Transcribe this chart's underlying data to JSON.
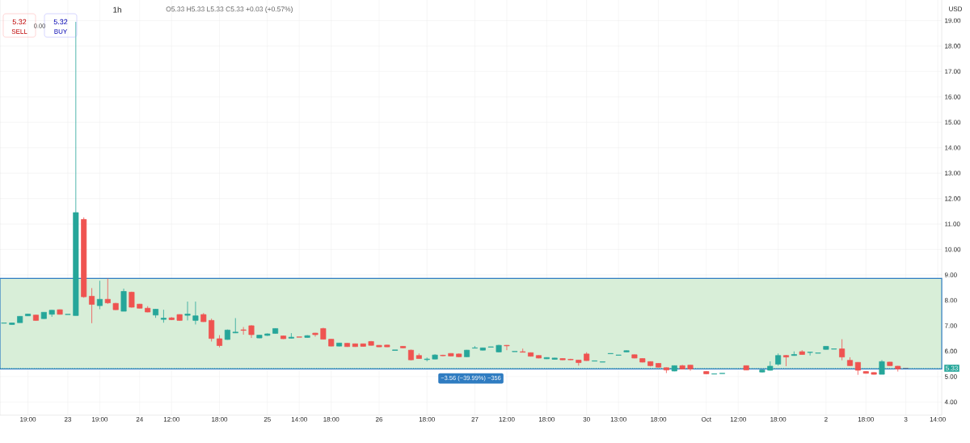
{
  "chart_data": {
    "type": "candlestick",
    "title": "1h",
    "ylabel": "USD",
    "categories": [
      null,
      null,
      null,
      "19:00",
      null,
      null,
      null,
      null,
      "23",
      null,
      null,
      null,
      "19:00",
      null,
      null,
      null,
      null,
      "24",
      null,
      null,
      null,
      "12:00",
      null,
      null,
      null,
      null,
      null,
      "18:00",
      null,
      null,
      null,
      null,
      null,
      "25",
      null,
      null,
      null,
      "14:00",
      null,
      null,
      null,
      "18:00",
      null,
      null,
      null,
      null,
      null,
      "26",
      null,
      null,
      null,
      null,
      null,
      "18:00",
      null,
      null,
      null,
      null,
      null,
      "27",
      null,
      null,
      null,
      "12:00",
      null,
      null,
      null,
      null,
      "18:00",
      null,
      null,
      null,
      null,
      "30",
      null,
      null,
      null,
      "13:00",
      null,
      null,
      null,
      null,
      "18:00",
      null,
      null,
      null,
      null,
      null,
      "Oct",
      null,
      null,
      null,
      "12:00",
      null,
      null,
      null,
      null,
      "18:00",
      null,
      null,
      null,
      null,
      null,
      "2",
      null,
      null,
      null,
      null,
      "18:00",
      null,
      null,
      null,
      null,
      "3",
      null,
      null,
      null,
      "14:00"
    ],
    "ohlc": [
      [
        7.1,
        7.11,
        7.1,
        7.11
      ],
      [
        7.05,
        7.12,
        7.04,
        7.11
      ],
      [
        7.12,
        7.38,
        7.12,
        7.37
      ],
      [
        7.39,
        7.47,
        7.38,
        7.46
      ],
      [
        7.42,
        7.43,
        7.2,
        7.21
      ],
      [
        7.28,
        7.53,
        7.27,
        7.53
      ],
      [
        7.45,
        7.62,
        7.35,
        7.61
      ],
      [
        7.63,
        7.64,
        7.44,
        7.45
      ],
      [
        7.44,
        7.45,
        7.44,
        7.45
      ],
      [
        7.4,
        18.95,
        7.4,
        11.45
      ],
      [
        11.18,
        11.26,
        8.1,
        8.14
      ],
      [
        8.16,
        8.48,
        7.1,
        7.84
      ],
      [
        7.79,
        8.77,
        7.65,
        8.04
      ],
      [
        8.04,
        8.86,
        7.86,
        7.9
      ],
      [
        7.88,
        7.9,
        7.62,
        7.63
      ],
      [
        7.57,
        8.46,
        7.57,
        8.35
      ],
      [
        8.32,
        8.34,
        7.71,
        7.73
      ],
      [
        7.85,
        7.86,
        7.68,
        7.69
      ],
      [
        7.69,
        7.77,
        7.53,
        7.54
      ],
      [
        7.42,
        7.66,
        7.31,
        7.65
      ],
      [
        7.25,
        7.63,
        7.12,
        7.3
      ],
      [
        7.31,
        7.34,
        7.22,
        7.24
      ],
      [
        7.44,
        7.45,
        7.2,
        7.21
      ],
      [
        7.41,
        7.95,
        7.21,
        7.46
      ],
      [
        7.21,
        7.95,
        7.05,
        7.39
      ],
      [
        7.44,
        7.5,
        7.15,
        7.16
      ],
      [
        7.21,
        7.28,
        6.38,
        6.5
      ],
      [
        6.49,
        6.63,
        6.15,
        6.22
      ],
      [
        6.46,
        6.85,
        6.45,
        6.83
      ],
      [
        6.72,
        7.3,
        6.71,
        6.75
      ],
      [
        6.84,
        6.95,
        6.65,
        6.82
      ],
      [
        7.0,
        7.02,
        6.52,
        6.65
      ],
      [
        6.52,
        6.64,
        6.51,
        6.63
      ],
      [
        6.62,
        6.7,
        6.6,
        6.68
      ],
      [
        6.7,
        6.9,
        6.69,
        6.89
      ],
      [
        6.6,
        6.61,
        6.48,
        6.49
      ],
      [
        6.51,
        6.71,
        6.5,
        6.55
      ],
      [
        6.56,
        6.56,
        6.55,
        6.55
      ],
      [
        6.54,
        6.63,
        6.53,
        6.61
      ],
      [
        6.71,
        6.72,
        6.57,
        6.65
      ],
      [
        6.89,
        6.92,
        6.46,
        6.47
      ],
      [
        6.47,
        6.48,
        6.19,
        6.2
      ],
      [
        6.2,
        6.33,
        6.19,
        6.32
      ],
      [
        6.31,
        6.32,
        6.17,
        6.18
      ],
      [
        6.29,
        6.3,
        6.17,
        6.18
      ],
      [
        6.29,
        6.3,
        6.18,
        6.19
      ],
      [
        6.38,
        6.4,
        6.22,
        6.23
      ],
      [
        6.23,
        6.24,
        6.16,
        6.17
      ],
      [
        6.24,
        6.25,
        6.16,
        6.17
      ],
      [
        6.03,
        6.05,
        6.03,
        6.05
      ],
      [
        6.19,
        6.2,
        6.12,
        6.13
      ],
      [
        6.04,
        6.06,
        5.64,
        5.66
      ],
      [
        5.83,
        5.91,
        5.7,
        5.71
      ],
      [
        5.67,
        5.75,
        5.6,
        5.69
      ],
      [
        5.69,
        5.88,
        5.68,
        5.85
      ],
      [
        5.84,
        5.86,
        5.8,
        5.82
      ],
      [
        5.91,
        5.92,
        5.8,
        5.81
      ],
      [
        5.89,
        5.91,
        5.76,
        5.78
      ],
      [
        5.78,
        6.05,
        5.77,
        6.04
      ],
      [
        6.12,
        6.2,
        6.12,
        6.13
      ],
      [
        6.04,
        6.14,
        6.03,
        6.13
      ],
      [
        6.16,
        6.17,
        6.16,
        6.17
      ],
      [
        5.97,
        6.25,
        5.95,
        6.23
      ],
      [
        6.23,
        6.24,
        6.04,
        6.21
      ],
      [
        5.98,
        5.99,
        5.98,
        5.99
      ],
      [
        5.98,
        6.1,
        5.95,
        5.96
      ],
      [
        5.94,
        5.95,
        5.79,
        5.8
      ],
      [
        5.83,
        5.84,
        5.72,
        5.73
      ],
      [
        5.7,
        5.76,
        5.69,
        5.75
      ],
      [
        5.68,
        5.74,
        5.67,
        5.73
      ],
      [
        5.71,
        5.72,
        5.65,
        5.66
      ],
      [
        5.68,
        5.7,
        5.65,
        5.66
      ],
      [
        5.65,
        5.66,
        5.43,
        5.55
      ],
      [
        5.89,
        5.96,
        5.62,
        5.63
      ],
      [
        5.61,
        5.62,
        5.61,
        5.62
      ],
      [
        5.57,
        5.58,
        5.57,
        5.58
      ],
      [
        5.9,
        5.91,
        5.9,
        5.91
      ],
      [
        5.84,
        5.85,
        5.84,
        5.85
      ],
      [
        5.97,
        6.03,
        5.96,
        6.02
      ],
      [
        5.86,
        5.87,
        5.72,
        5.73
      ],
      [
        5.71,
        5.72,
        5.56,
        5.57
      ],
      [
        5.59,
        5.6,
        5.4,
        5.43
      ],
      [
        5.52,
        5.53,
        5.36,
        5.37
      ],
      [
        5.35,
        5.36,
        5.14,
        5.26
      ],
      [
        5.22,
        5.44,
        5.21,
        5.43
      ],
      [
        5.43,
        5.46,
        5.28,
        5.3
      ],
      [
        5.45,
        5.46,
        5.23,
        5.3
      ],
      null,
      [
        5.2,
        5.21,
        5.1,
        5.11
      ],
      [
        5.1,
        5.11,
        5.1,
        5.11
      ],
      [
        5.12,
        5.13,
        5.12,
        5.13
      ],
      null,
      null,
      [
        5.43,
        5.44,
        5.25,
        5.26
      ],
      null,
      [
        5.18,
        5.27,
        5.16,
        5.26
      ],
      [
        5.25,
        5.6,
        5.24,
        5.41
      ],
      [
        5.49,
        5.91,
        5.43,
        5.83
      ],
      [
        5.83,
        5.85,
        5.41,
        5.77
      ],
      [
        5.83,
        5.99,
        5.82,
        5.87
      ],
      [
        5.98,
        6.04,
        5.86,
        5.87
      ],
      [
        5.95,
        5.97,
        5.83,
        5.96
      ],
      [
        5.92,
        5.93,
        5.92,
        5.93
      ],
      [
        6.07,
        6.2,
        6.06,
        6.19
      ],
      [
        6.08,
        6.09,
        6.08,
        6.09
      ],
      [
        6.09,
        6.47,
        5.64,
        5.77
      ],
      [
        5.64,
        5.76,
        5.42,
        5.43
      ],
      [
        5.56,
        5.57,
        5.07,
        5.25
      ],
      [
        5.2,
        5.21,
        5.12,
        5.13
      ],
      [
        5.16,
        5.17,
        5.08,
        5.09
      ],
      [
        5.09,
        5.65,
        5.09,
        5.59
      ],
      [
        5.57,
        5.58,
        5.42,
        5.43
      ],
      [
        5.41,
        5.42,
        5.2,
        5.3
      ],
      [
        5.33,
        5.33,
        5.33,
        5.33
      ],
      null,
      null,
      null,
      null
    ],
    "colors": [
      "#26a69a",
      "#26a69a",
      "#26a69a",
      "#26a69a",
      "#ef5350",
      "#26a69a",
      "#26a69a",
      "#ef5350",
      "#26a69a",
      "#26a69a",
      "#ef5350",
      "#ef5350",
      "#26a69a",
      "#ef5350",
      "#ef5350",
      "#26a69a",
      "#ef5350",
      "#ef5350",
      "#ef5350",
      "#26a69a",
      "#26a69a",
      "#ef5350",
      "#ef5350",
      "#26a69a",
      "#26a69a",
      "#ef5350",
      "#ef5350",
      "#ef5350",
      "#26a69a",
      "#26a69a",
      "#ef5350",
      "#ef5350",
      "#26a69a",
      "#26a69a",
      "#26a69a",
      "#ef5350",
      "#26a69a",
      "#ef5350",
      "#26a69a",
      "#ef5350",
      "#ef5350",
      "#ef5350",
      "#26a69a",
      "#ef5350",
      "#ef5350",
      "#ef5350",
      "#ef5350",
      "#ef5350",
      "#ef5350",
      "#26a69a",
      "#ef5350",
      "#ef5350",
      "#ef5350",
      "#26a69a",
      "#26a69a",
      "#ef5350",
      "#ef5350",
      "#ef5350",
      "#26a69a",
      "#26a69a",
      "#26a69a",
      "#26a69a",
      "#26a69a",
      "#ef5350",
      "#26a69a",
      "#ef5350",
      "#ef5350",
      "#ef5350",
      "#26a69a",
      "#26a69a",
      "#ef5350",
      "#ef5350",
      "#ef5350",
      "#ef5350",
      "#26a69a",
      "#26a69a",
      "#26a69a",
      "#26a69a",
      "#26a69a",
      "#ef5350",
      "#ef5350",
      "#ef5350",
      "#ef5350",
      "#ef5350",
      "#26a69a",
      "#ef5350",
      "#ef5350",
      null,
      "#ef5350",
      "#26a69a",
      "#26a69a",
      null,
      null,
      "#ef5350",
      null,
      "#26a69a",
      "#26a69a",
      "#26a69a",
      "#ef5350",
      "#26a69a",
      "#ef5350",
      "#26a69a",
      "#26a69a",
      "#26a69a",
      "#26a69a",
      "#ef5350",
      "#ef5350",
      "#ef5350",
      "#ef5350",
      "#ef5350",
      "#26a69a",
      "#ef5350",
      "#ef5350",
      "#787b86",
      null,
      null,
      null,
      null
    ],
    "ylim": [
      3.49,
      20.56
    ],
    "yticks": [
      {
        "value": 4,
        "label": "4.00"
      },
      {
        "value": 5,
        "label": "5.00"
      },
      {
        "value": 6,
        "label": "6.00"
      },
      {
        "value": 7,
        "label": "7.00"
      },
      {
        "value": 8,
        "label": "8.00"
      },
      {
        "value": 9,
        "label": "9.00"
      },
      {
        "value": 10,
        "label": "10.00"
      },
      {
        "value": 11,
        "label": "11.00"
      },
      {
        "value": 12,
        "label": "12.00"
      },
      {
        "value": 13,
        "label": "13.00"
      },
      {
        "value": 14,
        "label": "14.00"
      },
      {
        "value": 15,
        "label": "15.00"
      },
      {
        "value": 16,
        "label": "16.00"
      },
      {
        "value": 17,
        "label": "17.00"
      },
      {
        "value": 18,
        "label": "18.00"
      },
      {
        "value": 19,
        "label": "19.00"
      }
    ],
    "grid": true,
    "bands": [
      {
        "axis": "y",
        "from": 5.3,
        "to": 8.86,
        "label": "−3.56 (−39.99%) −356",
        "color": "#d8eed8"
      }
    ],
    "ref_lines": [
      {
        "axis": "y",
        "value": 5.33,
        "label": "5.33",
        "color": "#26a69a",
        "line_style": "dotted"
      }
    ],
    "annotations": [
      "O5.33 H5.33 L5.33 C5.33 +0.03 (+0.57%)",
      "5.32",
      "SELL",
      "0.00",
      "5.32",
      "BUY"
    ]
  }
}
